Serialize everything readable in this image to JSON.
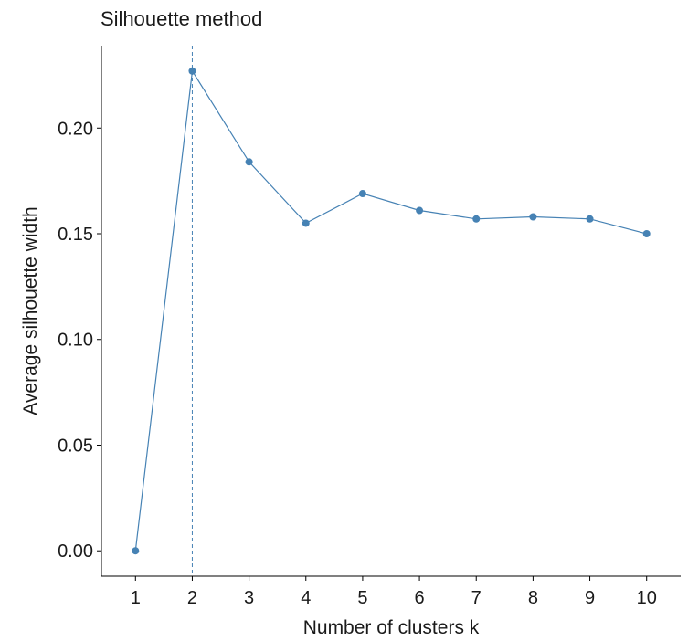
{
  "chart_data": {
    "type": "line",
    "title": "Silhouette method",
    "xlabel": "Number of clusters k",
    "ylabel": "Average silhouette width",
    "x": [
      1,
      2,
      3,
      4,
      5,
      6,
      7,
      8,
      9,
      10
    ],
    "xticks": [
      "1",
      "2",
      "3",
      "4",
      "5",
      "6",
      "7",
      "8",
      "9",
      "10"
    ],
    "series": [
      {
        "values": [
          0.0,
          0.227,
          0.184,
          0.155,
          0.169,
          0.161,
          0.157,
          0.158,
          0.157,
          0.15
        ]
      }
    ],
    "optimal_k": 2,
    "yticks": [
      "0.00",
      "0.05",
      "0.10",
      "0.15",
      "0.20"
    ],
    "ylim": [
      -0.012,
      0.239
    ],
    "xlim": [
      0.4,
      10.6
    ],
    "grid": false,
    "colors": {
      "series": "#4682b4",
      "vline": "#4682b4",
      "axis": "#000000"
    }
  }
}
